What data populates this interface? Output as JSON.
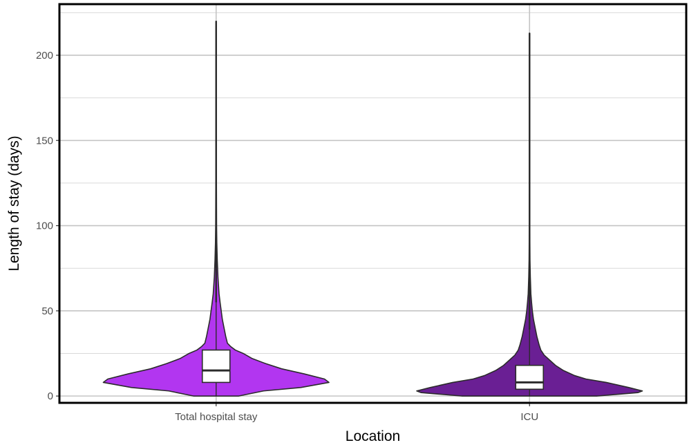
{
  "chart_data": {
    "type": "violin",
    "xlabel": "Location",
    "ylabel": "Length of stay (days)",
    "ylim": [
      -4,
      230
    ],
    "yticks": [
      0,
      50,
      100,
      150,
      200
    ],
    "grid": true,
    "categories": [
      "Total hospital stay",
      "ICU"
    ],
    "series": [
      {
        "category": "Total hospital stay",
        "color": "#B236F0",
        "box": {
          "min": 0,
          "q1": 8,
          "median": 15,
          "q3": 27,
          "upper_whisker": 55,
          "max": 220
        },
        "density": [
          [
            0,
            0.2
          ],
          [
            3,
            0.42
          ],
          [
            5,
            0.75
          ],
          [
            8,
            1.0
          ],
          [
            10,
            0.96
          ],
          [
            13,
            0.78
          ],
          [
            16,
            0.58
          ],
          [
            19,
            0.44
          ],
          [
            22,
            0.32
          ],
          [
            25,
            0.24
          ],
          [
            27,
            0.17
          ],
          [
            29,
            0.13
          ],
          [
            31,
            0.1
          ],
          [
            35,
            0.085
          ],
          [
            40,
            0.07
          ],
          [
            45,
            0.055
          ],
          [
            50,
            0.045
          ],
          [
            55,
            0.035
          ],
          [
            60,
            0.026
          ],
          [
            70,
            0.016
          ],
          [
            80,
            0.01
          ],
          [
            90,
            0.006
          ],
          [
            100,
            0.004
          ],
          [
            120,
            0.003
          ],
          [
            150,
            0.002
          ],
          [
            220,
            0.0015
          ]
        ]
      },
      {
        "category": "ICU",
        "color": "#6A1F94",
        "box": {
          "min": 0,
          "q1": 4,
          "median": 8,
          "q3": 18,
          "upper_whisker": 39,
          "max": 213
        },
        "density": [
          [
            0,
            0.6
          ],
          [
            2,
            0.96
          ],
          [
            3,
            1.0
          ],
          [
            5,
            0.88
          ],
          [
            8,
            0.68
          ],
          [
            10,
            0.5
          ],
          [
            12,
            0.4
          ],
          [
            15,
            0.3
          ],
          [
            18,
            0.23
          ],
          [
            21,
            0.18
          ],
          [
            24,
            0.13
          ],
          [
            27,
            0.1
          ],
          [
            30,
            0.085
          ],
          [
            35,
            0.065
          ],
          [
            40,
            0.05
          ],
          [
            45,
            0.035
          ],
          [
            50,
            0.025
          ],
          [
            55,
            0.018
          ],
          [
            60,
            0.012
          ],
          [
            70,
            0.007
          ],
          [
            80,
            0.004
          ],
          [
            90,
            0.003
          ],
          [
            120,
            0.002
          ],
          [
            213,
            0.0015
          ]
        ]
      }
    ]
  }
}
